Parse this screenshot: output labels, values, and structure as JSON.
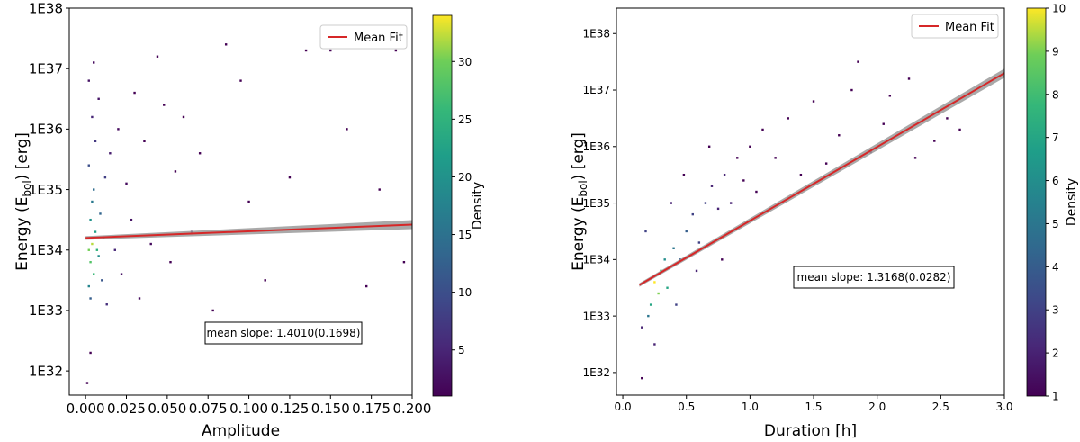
{
  "chart_data": [
    {
      "type": "scatter",
      "id": "left",
      "xlabel": "Amplitude",
      "ylabel": "Energy (E",
      "ylabel_sub": "bol",
      "ylabel_tail": ") [erg]",
      "xlim": [
        -0.01,
        0.2
      ],
      "ylim_log10": [
        31.6,
        38.0
      ],
      "xticks": [
        0.0,
        0.025,
        0.05,
        0.075,
        0.1,
        0.125,
        0.15,
        0.175,
        0.2
      ],
      "xtick_labels": [
        "0.000",
        "0.025",
        "0.050",
        "0.075",
        "0.100",
        "0.125",
        "0.150",
        "0.175",
        "0.200"
      ],
      "yticks_log10": [
        32,
        33,
        34,
        35,
        36,
        37,
        38
      ],
      "ytick_labels": [
        "1E32",
        "1E33",
        "1E34",
        "1E35",
        "1E36",
        "1E37",
        "1E38"
      ],
      "legend": {
        "label": "Mean Fit",
        "placement": "top-right"
      },
      "fit": {
        "label": "Mean Fit",
        "log10_energy_at_x": [
          [
            0.0,
            34.2
          ],
          [
            0.2,
            34.42
          ]
        ],
        "color": "#d62728"
      },
      "annotation": "mean slope: 1.4010(0.1698)",
      "colorbar": {
        "label": "Density",
        "min": 1,
        "max": 34,
        "ticks": [
          5,
          10,
          15,
          20,
          25,
          30
        ],
        "tick_labels": [
          "5",
          "10",
          "15",
          "20",
          "25",
          "30"
        ]
      },
      "points_description": "Dense column of flares near amplitude 0.000-0.015 spanning 1E33-1E37 erg (highest density near 1E34), sparse scatter at larger amplitudes",
      "points": [
        [
          0.002,
          34.0,
          30
        ],
        [
          0.003,
          33.8,
          28
        ],
        [
          0.004,
          34.1,
          32
        ],
        [
          0.005,
          33.6,
          26
        ],
        [
          0.006,
          34.3,
          22
        ],
        [
          0.003,
          34.5,
          20
        ],
        [
          0.002,
          33.4,
          18
        ],
        [
          0.007,
          34.0,
          25
        ],
        [
          0.008,
          33.9,
          19
        ],
        [
          0.004,
          34.8,
          16
        ],
        [
          0.005,
          35.0,
          14
        ],
        [
          0.003,
          33.2,
          12
        ],
        [
          0.002,
          35.4,
          10
        ],
        [
          0.006,
          35.8,
          7
        ],
        [
          0.004,
          36.2,
          5
        ],
        [
          0.009,
          34.6,
          13
        ],
        [
          0.01,
          33.5,
          11
        ],
        [
          0.011,
          34.2,
          15
        ],
        [
          0.012,
          35.2,
          8
        ],
        [
          0.013,
          33.1,
          6
        ],
        [
          0.002,
          36.8,
          3
        ],
        [
          0.005,
          37.1,
          2
        ],
        [
          0.008,
          36.5,
          3
        ],
        [
          0.015,
          35.6,
          4
        ],
        [
          0.018,
          34.0,
          5
        ],
        [
          0.02,
          36.0,
          2
        ],
        [
          0.022,
          33.6,
          3
        ],
        [
          0.025,
          35.1,
          2
        ],
        [
          0.028,
          34.5,
          3
        ],
        [
          0.03,
          36.6,
          1
        ],
        [
          0.033,
          33.2,
          2
        ],
        [
          0.036,
          35.8,
          1
        ],
        [
          0.04,
          34.1,
          2
        ],
        [
          0.044,
          37.2,
          1
        ],
        [
          0.048,
          36.4,
          1
        ],
        [
          0.052,
          33.8,
          1
        ],
        [
          0.055,
          35.3,
          1
        ],
        [
          0.06,
          36.2,
          1
        ],
        [
          0.065,
          34.3,
          1
        ],
        [
          0.07,
          35.6,
          1
        ],
        [
          0.078,
          33.0,
          1
        ],
        [
          0.086,
          37.4,
          1
        ],
        [
          0.095,
          36.8,
          1
        ],
        [
          0.1,
          34.8,
          1
        ],
        [
          0.11,
          33.5,
          1
        ],
        [
          0.125,
          35.2,
          1
        ],
        [
          0.135,
          37.3,
          1
        ],
        [
          0.15,
          37.3,
          1
        ],
        [
          0.16,
          36.0,
          1
        ],
        [
          0.172,
          33.4,
          1
        ],
        [
          0.18,
          35.0,
          1
        ],
        [
          0.19,
          37.3,
          1
        ],
        [
          0.195,
          33.8,
          1
        ],
        [
          0.001,
          31.8,
          1
        ],
        [
          0.003,
          32.3,
          1
        ]
      ]
    },
    {
      "type": "scatter",
      "id": "right",
      "xlabel": "Duration [h]",
      "ylabel": "Energy (E",
      "ylabel_sub": "bol",
      "ylabel_tail": ") [erg]",
      "xlim": [
        -0.05,
        3.0
      ],
      "ylim_log10": [
        31.6,
        38.45
      ],
      "xticks": [
        0.0,
        0.5,
        1.0,
        1.5,
        2.0,
        2.5,
        3.0
      ],
      "xtick_labels": [
        "0.0",
        "0.5",
        "1.0",
        "1.5",
        "2.0",
        "2.5",
        "3.0"
      ],
      "yticks_log10": [
        32,
        33,
        34,
        35,
        36,
        37,
        38
      ],
      "ytick_labels": [
        "1E32",
        "1E33",
        "1E34",
        "1E35",
        "1E36",
        "1E37",
        "1E38"
      ],
      "legend": {
        "label": "Mean Fit",
        "placement": "top-right"
      },
      "fit": {
        "label": "Mean Fit",
        "log10_energy_at_x": [
          [
            0.13,
            33.55
          ],
          [
            3.0,
            37.3
          ]
        ],
        "color": "#d62728"
      },
      "annotation": "mean slope: 1.3168(0.0282)",
      "colorbar": {
        "label": "Density",
        "min": 1,
        "max": 10,
        "ticks": [
          1,
          2,
          3,
          4,
          5,
          6,
          7,
          8,
          9,
          10
        ],
        "tick_labels": [
          "1",
          "2",
          "3",
          "4",
          "5",
          "6",
          "7",
          "8",
          "9",
          "10"
        ]
      },
      "points_description": "Flares clustered between 0.15-1.0 h and 1E33-1E36 erg following the fit line, highest density near 0.3 h / 3E33 erg, sparse points out to 2.7 h",
      "points": [
        [
          0.25,
          33.6,
          10
        ],
        [
          0.28,
          33.4,
          9
        ],
        [
          0.3,
          33.8,
          8
        ],
        [
          0.22,
          33.2,
          7
        ],
        [
          0.33,
          34.0,
          6
        ],
        [
          0.2,
          33.0,
          5
        ],
        [
          0.35,
          33.5,
          7
        ],
        [
          0.4,
          34.2,
          5
        ],
        [
          0.45,
          34.0,
          4
        ],
        [
          0.5,
          34.5,
          4
        ],
        [
          0.55,
          34.8,
          3
        ],
        [
          0.6,
          34.3,
          3
        ],
        [
          0.65,
          35.0,
          3
        ],
        [
          0.7,
          35.3,
          2
        ],
        [
          0.75,
          34.9,
          2
        ],
        [
          0.8,
          35.5,
          2
        ],
        [
          0.85,
          35.0,
          2
        ],
        [
          0.9,
          35.8,
          1
        ],
        [
          0.95,
          35.4,
          1
        ],
        [
          1.0,
          36.0,
          1
        ],
        [
          0.18,
          34.5,
          3
        ],
        [
          0.15,
          32.8,
          2
        ],
        [
          0.15,
          31.9,
          1
        ],
        [
          0.25,
          32.5,
          2
        ],
        [
          0.38,
          35.0,
          2
        ],
        [
          0.42,
          33.2,
          3
        ],
        [
          0.48,
          35.5,
          1
        ],
        [
          0.58,
          33.8,
          2
        ],
        [
          0.68,
          36.0,
          1
        ],
        [
          0.78,
          34.0,
          1
        ],
        [
          1.05,
          35.2,
          1
        ],
        [
          1.1,
          36.3,
          1
        ],
        [
          1.2,
          35.8,
          1
        ],
        [
          1.3,
          36.5,
          1
        ],
        [
          1.4,
          35.5,
          1
        ],
        [
          1.5,
          36.8,
          1
        ],
        [
          1.6,
          35.7,
          1
        ],
        [
          1.7,
          36.2,
          1
        ],
        [
          1.8,
          37.0,
          1
        ],
        [
          1.85,
          37.5,
          1
        ],
        [
          1.95,
          35.9,
          1
        ],
        [
          2.05,
          36.4,
          1
        ],
        [
          2.1,
          36.9,
          1
        ],
        [
          2.25,
          37.2,
          1
        ],
        [
          2.3,
          35.8,
          1
        ],
        [
          2.45,
          36.1,
          1
        ],
        [
          2.55,
          36.5,
          1
        ],
        [
          2.65,
          36.3,
          1
        ]
      ]
    }
  ]
}
